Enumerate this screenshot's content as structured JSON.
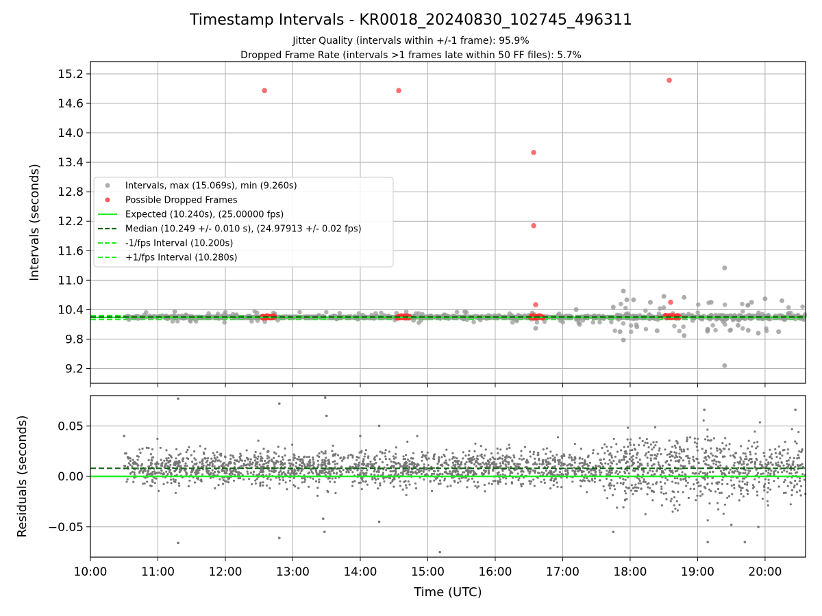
{
  "figure": {
    "title": "Timestamp Intervals - KR0018_20240830_102745_496311",
    "subtitle_lines": [
      "Jitter Quality (intervals within +/-1 frame): 95.9%",
      "Dropped Frame Rate (intervals >1 frames late within 50 FF files): 5.7%"
    ]
  },
  "colors": {
    "intervals": "#999999",
    "dropped": "#ff3333",
    "expected": "#22ee22",
    "median": "#116611",
    "bounds": "#22ee22",
    "residuals": "#777777",
    "grid": "#b0b0b0"
  },
  "chart_data": [
    {
      "type": "scatter",
      "ylabel": "Intervals (seconds)",
      "xlim_hours": [
        10.0,
        20.6
      ],
      "ylim": [
        8.9,
        15.45
      ],
      "yticks": [
        9.2,
        9.8,
        10.4,
        11.0,
        11.6,
        12.2,
        12.8,
        13.4,
        14.0,
        14.6,
        15.2
      ],
      "ytick_labels": [
        "9.2",
        "9.8",
        "10.4",
        "11.0",
        "11.6",
        "12.2",
        "12.8",
        "13.4",
        "14.0",
        "14.6",
        "15.2"
      ],
      "grid": true,
      "legend_position": "center-left",
      "legend": [
        {
          "key": "intervals",
          "label": "Intervals, max (15.069s), min (9.260s)",
          "style": "marker"
        },
        {
          "key": "dropped",
          "label": "Possible Dropped Frames",
          "style": "marker"
        },
        {
          "key": "expected",
          "label": "Expected (10.240s), (25.00000 fps)",
          "style": "solid"
        },
        {
          "key": "median",
          "label": "Median (10.249 +/- 0.010 s), (24.97913 +/- 0.02 fps)",
          "style": "dashed"
        },
        {
          "key": "lower",
          "label": "-1/fps Interval (10.200s)",
          "style": "dashed"
        },
        {
          "key": "upper",
          "label": "+1/fps Interval (10.280s)",
          "style": "dashed"
        }
      ],
      "lines": {
        "expected": 10.24,
        "median": 10.249,
        "lower": 10.2,
        "upper": 10.28
      },
      "dropped_points": [
        {
          "x": 12.58,
          "y": 14.86
        },
        {
          "x": 14.57,
          "y": 14.86
        },
        {
          "x": 16.57,
          "y": 13.6
        },
        {
          "x": 16.57,
          "y": 12.11
        },
        {
          "x": 16.6,
          "y": 10.5
        },
        {
          "x": 18.58,
          "y": 15.07
        },
        {
          "x": 18.6,
          "y": 10.55
        }
      ],
      "dropped_clusters": [
        {
          "x_start": 12.55,
          "x_end": 12.72,
          "y": 10.25
        },
        {
          "x_start": 14.55,
          "x_end": 14.72,
          "y": 10.25
        },
        {
          "x_start": 16.53,
          "x_end": 16.7,
          "y": 10.25
        },
        {
          "x_start": 18.53,
          "x_end": 18.72,
          "y": 10.26
        }
      ],
      "interval_outliers": [
        {
          "x": 17.9,
          "y": 10.78
        },
        {
          "x": 17.95,
          "y": 10.6
        },
        {
          "x": 18.05,
          "y": 10.6
        },
        {
          "x": 18.3,
          "y": 10.55
        },
        {
          "x": 18.5,
          "y": 10.67
        },
        {
          "x": 18.8,
          "y": 10.65
        },
        {
          "x": 19.2,
          "y": 10.55
        },
        {
          "x": 19.4,
          "y": 11.25
        },
        {
          "x": 19.8,
          "y": 10.55
        },
        {
          "x": 20.0,
          "y": 10.62
        },
        {
          "x": 20.25,
          "y": 10.58
        },
        {
          "x": 17.9,
          "y": 9.78
        },
        {
          "x": 17.85,
          "y": 9.95
        },
        {
          "x": 18.4,
          "y": 9.97
        },
        {
          "x": 18.8,
          "y": 9.87
        },
        {
          "x": 19.4,
          "y": 9.26
        },
        {
          "x": 19.9,
          "y": 9.92
        },
        {
          "x": 19.75,
          "y": 9.98
        },
        {
          "x": 16.6,
          "y": 10.02
        },
        {
          "x": 19.15,
          "y": 10.0
        },
        {
          "x": 20.2,
          "y": 9.95
        },
        {
          "x": 17.25,
          "y": 10.1
        },
        {
          "x": 18.1,
          "y": 10.05
        },
        {
          "x": 19.6,
          "y": 10.08
        },
        {
          "x": 11.25,
          "y": 10.36
        },
        {
          "x": 15.55,
          "y": 10.36
        },
        {
          "x": 17.2,
          "y": 10.4
        },
        {
          "x": 17.75,
          "y": 10.45
        }
      ]
    },
    {
      "type": "scatter",
      "xlabel": "Time (UTC)",
      "ylabel": "Residuals (seconds)",
      "xlim_hours": [
        10.0,
        20.6
      ],
      "ylim": [
        -0.08,
        0.08
      ],
      "yticks": [
        -0.05,
        0.0,
        0.05
      ],
      "ytick_labels": [
        "−0.05",
        "0.00",
        "0.05"
      ],
      "xticks_hours": [
        10,
        11,
        12,
        13,
        14,
        15,
        16,
        17,
        18,
        19,
        20
      ],
      "xtick_labels": [
        "10:00",
        "11:00",
        "12:00",
        "13:00",
        "14:00",
        "15:00",
        "16:00",
        "17:00",
        "18:00",
        "19:00",
        "20:00"
      ],
      "grid": true,
      "lines": {
        "zero": 0.0,
        "median": 0.008
      },
      "residual_outliers": [
        {
          "x": 11.3,
          "y": 0.077
        },
        {
          "x": 13.48,
          "y": 0.078
        },
        {
          "x": 12.8,
          "y": 0.072
        },
        {
          "x": 11.3,
          "y": -0.066
        },
        {
          "x": 12.8,
          "y": -0.061
        },
        {
          "x": 15.18,
          "y": -0.075
        },
        {
          "x": 13.47,
          "y": -0.055
        },
        {
          "x": 13.45,
          "y": -0.042
        },
        {
          "x": 14.28,
          "y": -0.045
        },
        {
          "x": 14.28,
          "y": 0.05
        },
        {
          "x": 14.0,
          "y": 0.04
        },
        {
          "x": 17.75,
          "y": -0.055
        },
        {
          "x": 19.9,
          "y": -0.05
        },
        {
          "x": 19.7,
          "y": -0.065
        },
        {
          "x": 19.15,
          "y": -0.065
        },
        {
          "x": 19.5,
          "y": -0.048
        },
        {
          "x": 20.45,
          "y": 0.066
        },
        {
          "x": 19.1,
          "y": 0.066
        },
        {
          "x": 10.5,
          "y": 0.04
        },
        {
          "x": 13.5,
          "y": 0.06
        }
      ]
    }
  ]
}
